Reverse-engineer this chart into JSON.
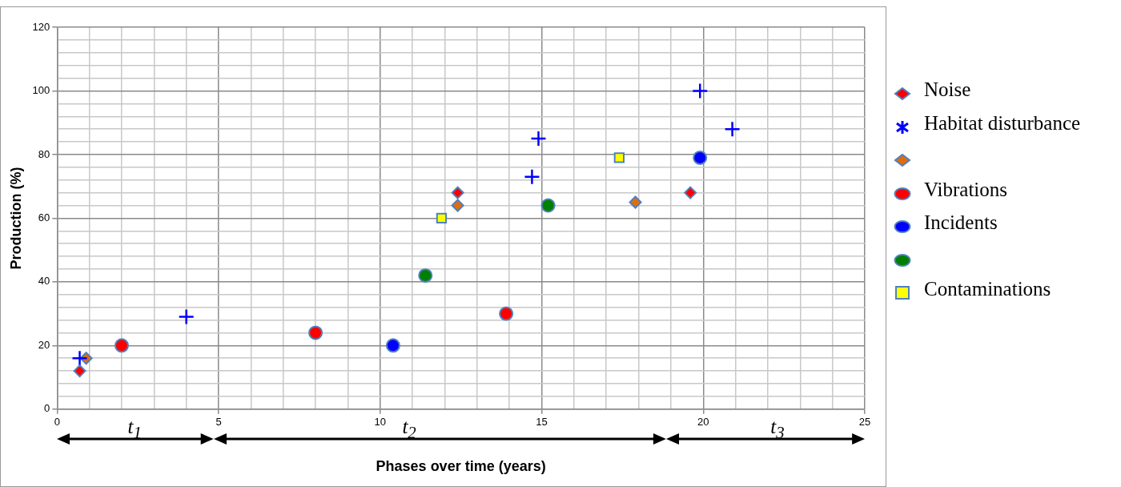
{
  "chart_data": {
    "type": "scatter",
    "xlabel": "Phases over time (years)",
    "ylabel": "Production (%)",
    "xlim": [
      0,
      25
    ],
    "xticks": [
      0,
      {
        "value": 1,
        "label": null
      },
      {
        "value": 2,
        "label": null
      },
      {
        "value": 3,
        "label": null
      },
      {
        "value": 4,
        "label": null
      },
      5,
      {
        "value": 6,
        "label": null
      },
      {
        "value": 7,
        "label": null
      },
      {
        "value": 8,
        "label": null
      },
      {
        "value": 9,
        "label": null
      },
      10,
      {
        "value": 11,
        "label": null
      },
      {
        "value": 12,
        "label": null
      },
      {
        "value": 13,
        "label": null
      },
      {
        "value": 14,
        "label": null
      },
      15,
      {
        "value": 16,
        "label": null
      },
      {
        "value": 17,
        "label": null
      },
      {
        "value": 18,
        "label": null
      },
      {
        "value": 19,
        "label": null
      },
      20,
      {
        "value": 21,
        "label": null
      },
      {
        "value": 22,
        "label": null
      },
      {
        "value": 23,
        "label": null
      },
      {
        "value": 24,
        "label": null
      },
      25
    ],
    "ylim": [
      0,
      120
    ],
    "yticks": [
      0,
      {
        "value": 4,
        "label": null
      },
      {
        "value": 8,
        "label": null
      },
      {
        "value": 12,
        "label": null
      },
      {
        "value": 16,
        "label": null
      },
      20,
      {
        "value": 24,
        "label": null
      },
      {
        "value": 28,
        "label": null
      },
      {
        "value": 32,
        "label": null
      },
      {
        "value": 36,
        "label": null
      },
      40,
      {
        "value": 44,
        "label": null
      },
      {
        "value": 48,
        "label": null
      },
      {
        "value": 52,
        "label": null
      },
      {
        "value": 56,
        "label": null
      },
      60,
      {
        "value": 64,
        "label": null
      },
      {
        "value": 68,
        "label": null
      },
      {
        "value": 72,
        "label": null
      },
      {
        "value": 76,
        "label": null
      },
      80,
      {
        "value": 84,
        "label": null
      },
      {
        "value": 88,
        "label": null
      },
      {
        "value": 92,
        "label": null
      },
      {
        "value": 96,
        "label": null
      },
      100,
      {
        "value": 104,
        "label": null
      },
      {
        "value": 108,
        "label": null
      },
      {
        "value": 112,
        "label": null
      },
      {
        "value": 116,
        "label": null
      },
      120
    ],
    "grid": true,
    "legend": "right",
    "annotations": [
      "t$_{1}$",
      "t$_{2}$",
      "t$_{3}$"
    ],
    "series": [
      {
        "name": "Noise",
        "color": "#ff0000",
        "marker": "diamond",
        "x": [
          0.7,
          12.4,
          19.6
        ],
        "values": [
          12,
          68,
          68
        ]
      },
      {
        "name": "Habitat disturbance",
        "color": "#0000ff",
        "marker": "cross",
        "x": [
          0.7,
          4,
          14.7,
          14.9,
          19.9,
          20.9
        ],
        "values": [
          16,
          29,
          73,
          85,
          100,
          88
        ]
      },
      {
        "color": "#e36c09",
        "marker": "diamond",
        "x": [
          0.9,
          12.4,
          17.9
        ],
        "values": [
          16,
          64,
          65
        ]
      },
      {
        "name": "Vibrations",
        "color": "#ff0000",
        "marker": "circle",
        "x": [
          2,
          8,
          13.9
        ],
        "values": [
          20,
          24,
          30
        ]
      },
      {
        "name": "Incidents",
        "color": "#0000ff",
        "marker": "circle",
        "x": [
          10.4,
          19.9
        ],
        "values": [
          20,
          79
        ]
      },
      {
        "color": "#007f00",
        "marker": "circle",
        "x": [
          11.4,
          15.2
        ],
        "values": [
          42,
          64
        ]
      },
      {
        "name": "Contaminations",
        "color": "#ffff00",
        "marker": "square",
        "x": [
          11.9,
          17.4
        ],
        "values": [
          60,
          79
        ]
      }
    ]
  }
}
